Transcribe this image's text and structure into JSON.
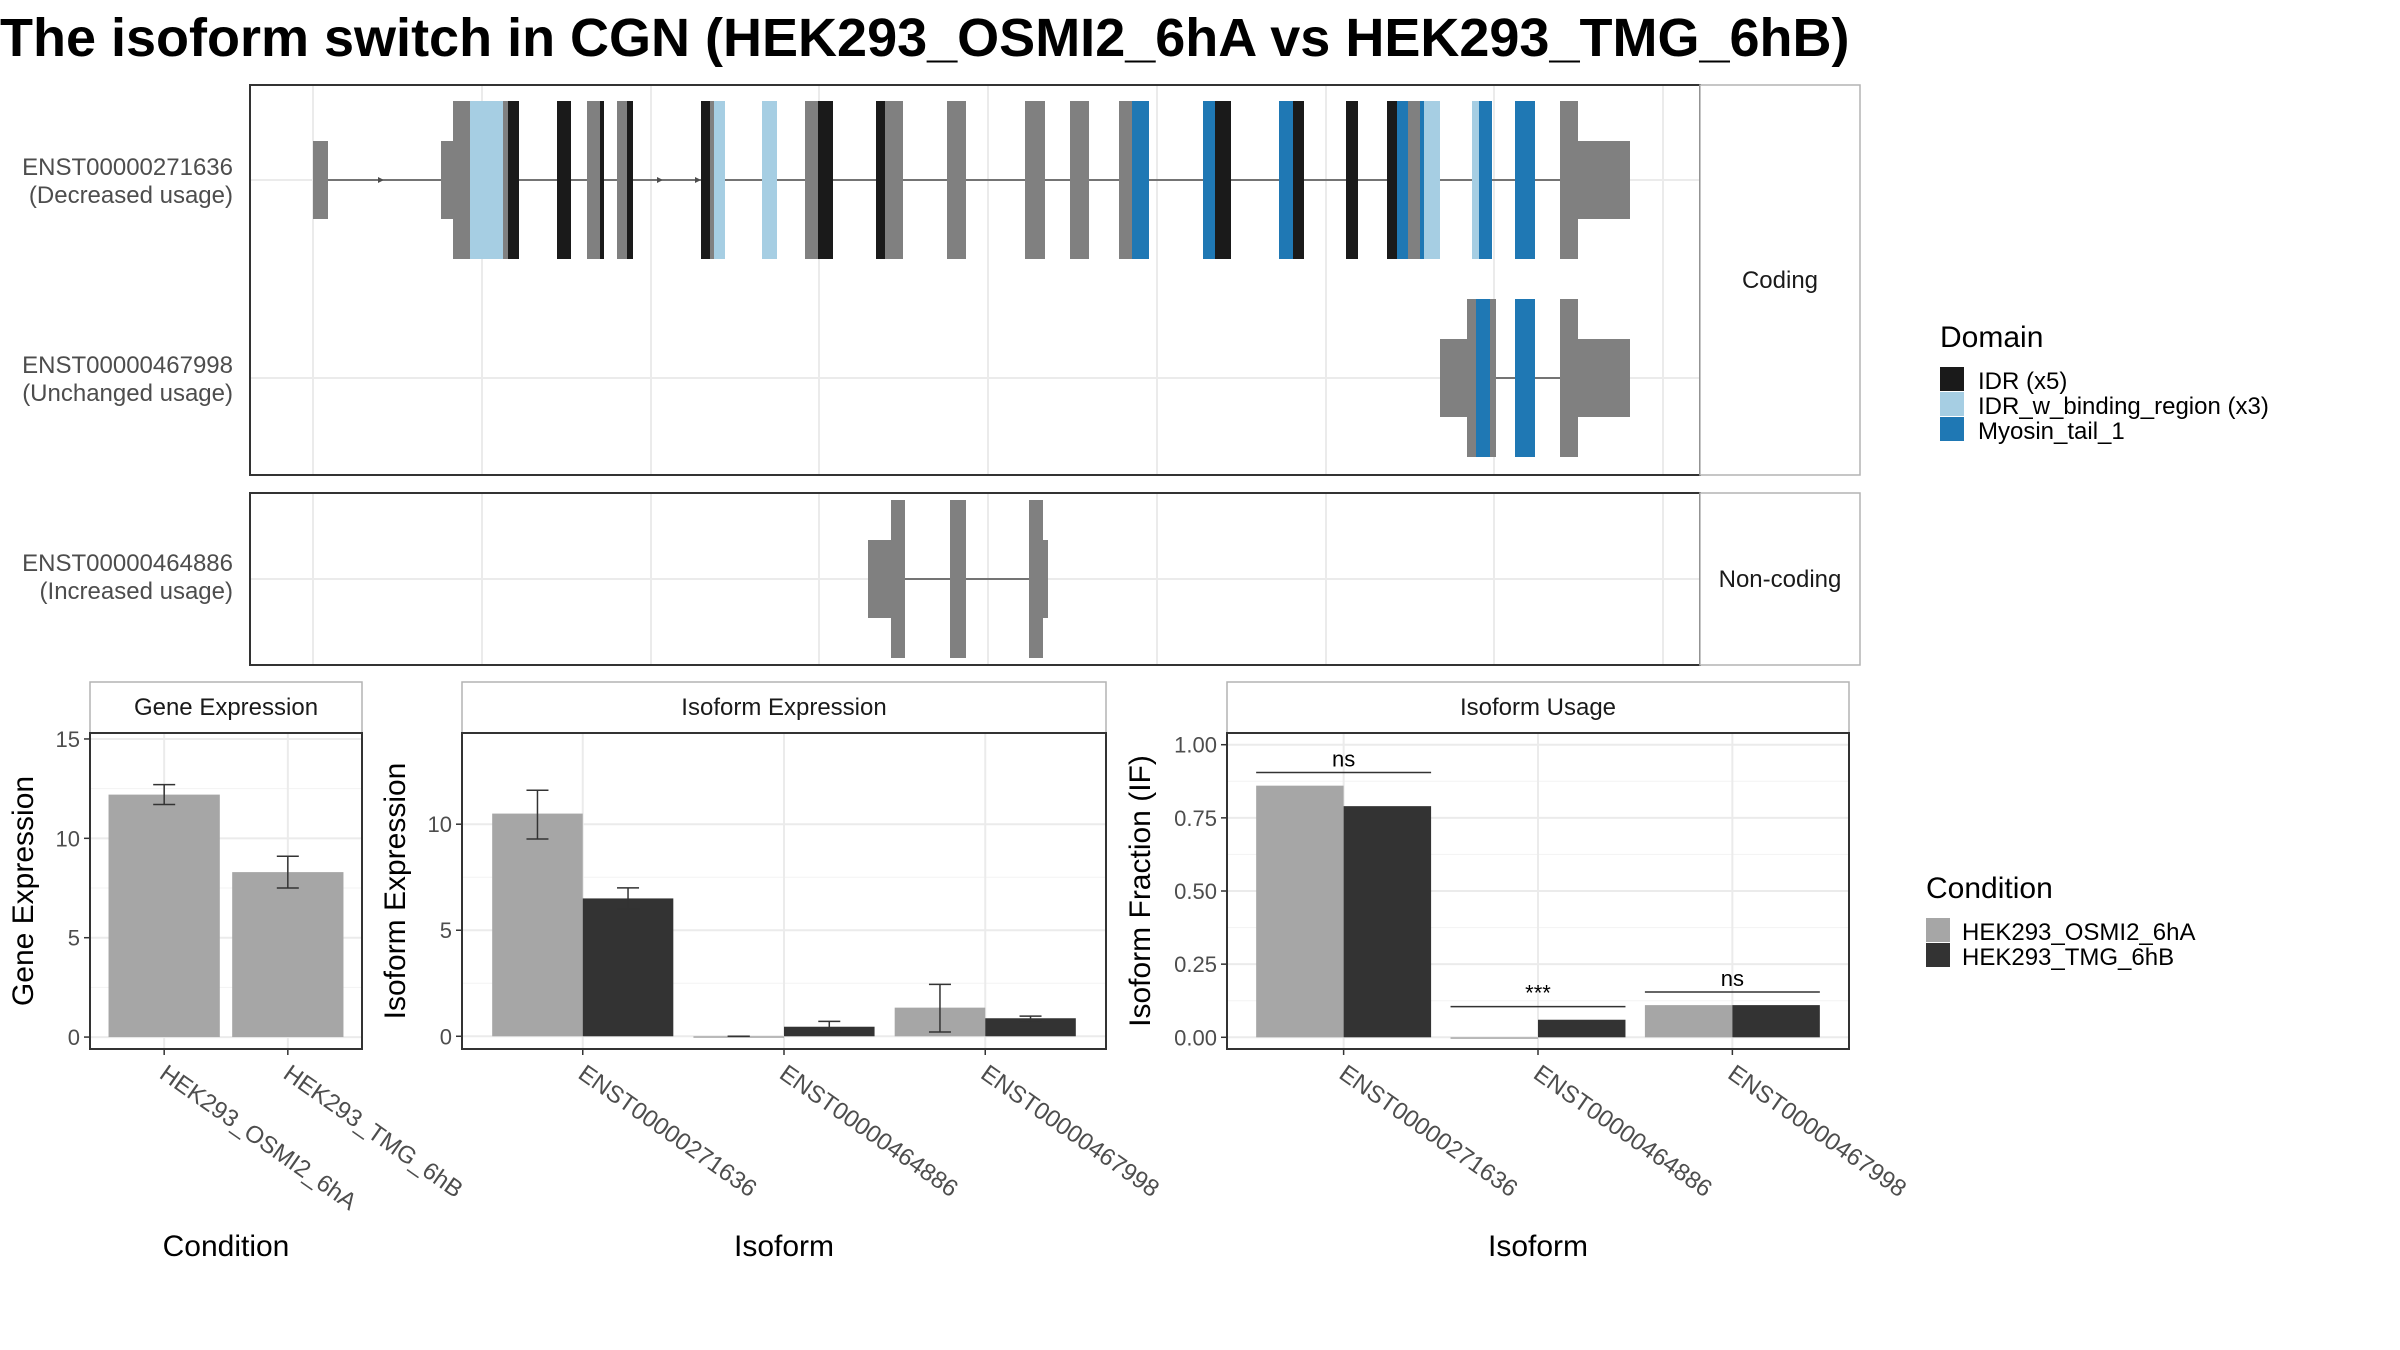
{
  "title": "The isoform switch in CGN (HEK293_OSMI2_6hA vs HEK293_TMG_6hB)",
  "colors": {
    "exon_plain": "#808080",
    "idr": "#1a1a1a",
    "idr_w_binding_region": "#a6cee3",
    "myosin_tail_1": "#1f78b4",
    "condition_a": "#a6a6a6",
    "condition_b": "#333333",
    "panel_border": "#333333",
    "strip_border": "#b3b3b3",
    "grid": "#ebebeb"
  },
  "transcript_panels": [
    {
      "facet_label": "Coding",
      "transcripts": [
        {
          "id": "ENST00000271636",
          "usage_label": "(Decreased usage)"
        },
        {
          "id": "ENST00000467998",
          "usage_label": "(Unchanged usage)"
        }
      ]
    },
    {
      "facet_label": "Non-coding",
      "transcripts": [
        {
          "id": "ENST00000464886",
          "usage_label": "(Increased usage)"
        }
      ]
    }
  ],
  "legends": {
    "domain": {
      "title": "Domain",
      "items": [
        {
          "label": "IDR (x5)",
          "color_key": "idr"
        },
        {
          "label": "IDR_w_binding_region (x3)",
          "color_key": "idr_w_binding_region"
        },
        {
          "label": "Myosin_tail_1",
          "color_key": "myosin_tail_1"
        }
      ]
    },
    "condition": {
      "title": "Condition",
      "items": [
        {
          "label": "HEK293_OSMI2_6hA",
          "color_key": "condition_a"
        },
        {
          "label": "HEK293_TMG_6hB",
          "color_key": "condition_b"
        }
      ]
    }
  },
  "chart_data": [
    {
      "type": "bar",
      "title": "Gene Expression",
      "xlabel": "Condition",
      "ylabel": "Gene Expression",
      "ylim": [
        -0.6,
        15.3
      ],
      "yticks": [
        "0",
        "5",
        "10",
        "15"
      ],
      "categories": [
        "HEK293_OSMI2_6hA",
        "HEK293_TMG_6hB"
      ],
      "values": [
        12.2,
        8.3
      ],
      "error_low": [
        11.7,
        7.5
      ],
      "error_high": [
        12.7,
        9.1
      ],
      "grid": true
    },
    {
      "type": "bar",
      "title": "Isoform Expression",
      "xlabel": "Isoform",
      "ylabel": "Isoform Expression",
      "ylim": [
        -0.6,
        14.3
      ],
      "yticks": [
        "0",
        "5",
        "10"
      ],
      "categories": [
        "ENST00000271636",
        "ENST00000464886",
        "ENST00000467998"
      ],
      "series": [
        {
          "name": "HEK293_OSMI2_6hA",
          "values": [
            10.5,
            0.0,
            1.35
          ],
          "error_low": [
            9.3,
            0.0,
            0.2
          ],
          "error_high": [
            11.6,
            0.0,
            2.45
          ]
        },
        {
          "name": "HEK293_TMG_6hB",
          "values": [
            6.5,
            0.45,
            0.85
          ],
          "error_low": [
            6.0,
            0.2,
            0.75
          ],
          "error_high": [
            7.0,
            0.7,
            0.95
          ]
        }
      ],
      "grid": true
    },
    {
      "type": "bar",
      "title": "Isoform Usage",
      "xlabel": "Isoform",
      "ylabel": "Isoform Fraction (IF)",
      "ylim": [
        -0.04,
        1.04
      ],
      "yticks": [
        "0.00",
        "0.25",
        "0.50",
        "0.75",
        "1.00"
      ],
      "categories": [
        "ENST00000271636",
        "ENST00000464886",
        "ENST00000467998"
      ],
      "series": [
        {
          "name": "HEK293_OSMI2_6hA",
          "values": [
            0.86,
            0.0,
            0.11
          ]
        },
        {
          "name": "HEK293_TMG_6hB",
          "values": [
            0.79,
            0.06,
            0.11
          ]
        }
      ],
      "significance": [
        "ns",
        "***",
        "ns"
      ],
      "grid": true
    }
  ]
}
